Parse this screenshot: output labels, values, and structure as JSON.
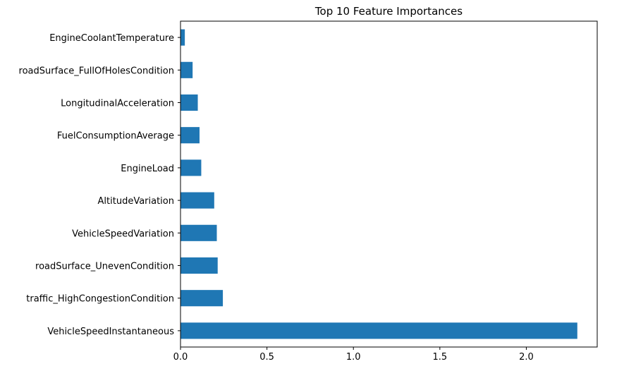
{
  "chart_data": {
    "type": "bar",
    "orientation": "horizontal",
    "title": "Top 10 Feature Importances",
    "xlabel": "",
    "ylabel": "",
    "categories": [
      "EngineCoolantTemperature",
      "roadSurface_FullOfHolesCondition",
      "LongitudinalAcceleration",
      "FuelConsumptionAverage",
      "EngineLoad",
      "AltitudeVariation",
      "VehicleSpeedVariation",
      "roadSurface_UnevenCondition",
      "traffic_HighCongestionCondition",
      "VehicleSpeedInstantaneous"
    ],
    "values": [
      0.025,
      0.07,
      0.1,
      0.11,
      0.12,
      0.195,
      0.21,
      0.215,
      0.245,
      2.295
    ],
    "xlim": [
      0,
      2.41
    ],
    "xticks": [
      0.0,
      0.5,
      1.0,
      1.5,
      2.0
    ],
    "xtick_labels": [
      "0.0",
      "0.5",
      "1.0",
      "1.5",
      "2.0"
    ],
    "grid": false,
    "bar_color": "#1f77b4"
  }
}
